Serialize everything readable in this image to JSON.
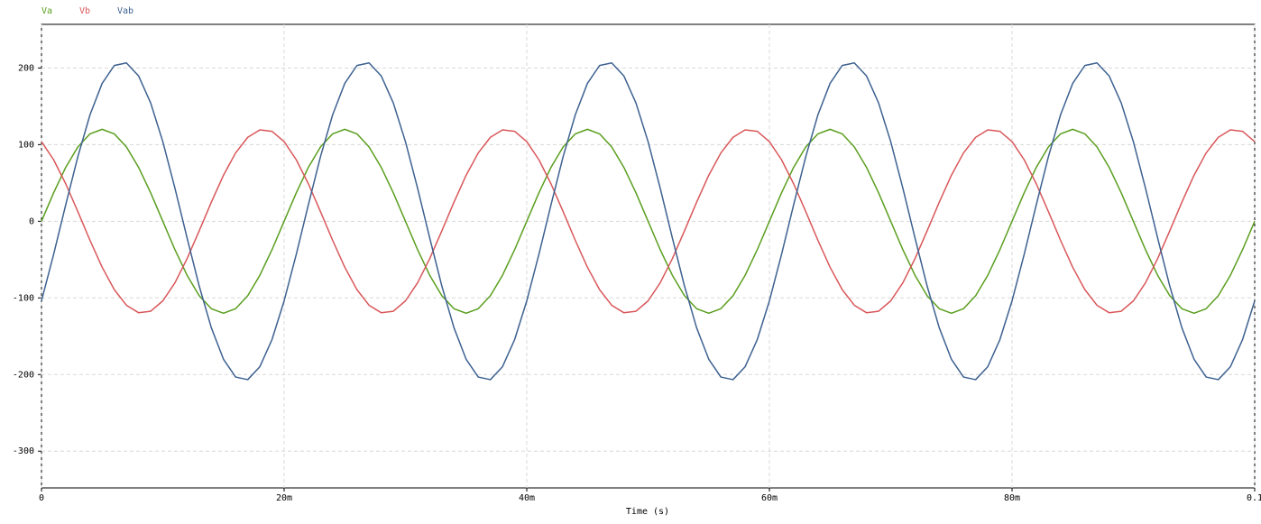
{
  "chart_data": {
    "type": "line",
    "xlabel": "Time (s)",
    "x": [
      0,
      0.001,
      0.002,
      0.003,
      0.004,
      0.005,
      0.006,
      0.007,
      0.008,
      0.009,
      0.01,
      0.011,
      0.012,
      0.013,
      0.014,
      0.015,
      0.016,
      0.017,
      0.018,
      0.019,
      0.02,
      0.021,
      0.022,
      0.023,
      0.024,
      0.025,
      0.026,
      0.027,
      0.028,
      0.029,
      0.03,
      0.031,
      0.032,
      0.033,
      0.034,
      0.035,
      0.036,
      0.037,
      0.038,
      0.039,
      0.04,
      0.041,
      0.042,
      0.043,
      0.044,
      0.045,
      0.046,
      0.047,
      0.048,
      0.049,
      0.05,
      0.051,
      0.052,
      0.053,
      0.054,
      0.055,
      0.056,
      0.057,
      0.058,
      0.059,
      0.06,
      0.061,
      0.062,
      0.063,
      0.064,
      0.065,
      0.066,
      0.067,
      0.068,
      0.069,
      0.07,
      0.071,
      0.072,
      0.073,
      0.074,
      0.075,
      0.076,
      0.077,
      0.078,
      0.079,
      0.08,
      0.081,
      0.082,
      0.083,
      0.084,
      0.085,
      0.086,
      0.087,
      0.088,
      0.089,
      0.09,
      0.091,
      0.092,
      0.093,
      0.094,
      0.095,
      0.096,
      0.097,
      0.098,
      0.099,
      0.1
    ],
    "series": [
      {
        "name": "Va",
        "color": "#5a9e1e",
        "values": [
          0,
          37.1,
          70.5,
          97.1,
          114.1,
          120,
          114.1,
          97.1,
          70.5,
          37.1,
          0,
          -37.1,
          -70.5,
          -97.1,
          -114.1,
          -120,
          -114.1,
          -97.1,
          -70.5,
          -37.1,
          0,
          37.1,
          70.5,
          97.1,
          114.1,
          120,
          114.1,
          97.1,
          70.5,
          37.1,
          0,
          -37.1,
          -70.5,
          -97.1,
          -114.1,
          -120,
          -114.1,
          -97.1,
          -70.5,
          -37.1,
          0,
          37.1,
          70.5,
          97.1,
          114.1,
          120,
          114.1,
          97.1,
          70.5,
          37.1,
          0,
          -37.1,
          -70.5,
          -97.1,
          -114.1,
          -120,
          -114.1,
          -97.1,
          -70.5,
          -37.1,
          0,
          37.1,
          70.5,
          97.1,
          114.1,
          120,
          114.1,
          97.1,
          70.5,
          37.1,
          0,
          -37.1,
          -70.5,
          -97.1,
          -114.1,
          -120,
          -114.1,
          -97.1,
          -70.5,
          -37.1,
          0,
          37.1,
          70.5,
          97.1,
          114.1,
          120,
          114.1,
          97.1,
          70.5,
          37.1,
          0,
          -37.1,
          -70.5,
          -97.1,
          -114.1,
          -120,
          -114.1,
          -97.1,
          -70.5,
          -37.1,
          0
        ]
      },
      {
        "name": "Vb",
        "color": "#d9575a",
        "values": [
          103.9,
          80.3,
          48.8,
          12.5,
          -24.9,
          -60,
          -89.2,
          -109.6,
          -119.3,
          -117.4,
          -103.9,
          -80.3,
          -48.8,
          -12.5,
          24.9,
          60,
          89.2,
          109.6,
          119.3,
          117.4,
          103.9,
          80.3,
          48.8,
          12.5,
          -24.9,
          -60,
          -89.2,
          -109.6,
          -119.3,
          -117.4,
          -103.9,
          -80.3,
          -48.8,
          -12.5,
          24.9,
          60,
          89.2,
          109.6,
          119.3,
          117.4,
          103.9,
          80.3,
          48.8,
          12.5,
          -24.9,
          -60,
          -89.2,
          -109.6,
          -119.3,
          -117.4,
          -103.9,
          -80.3,
          -48.8,
          -12.5,
          24.9,
          60,
          89.2,
          109.6,
          119.3,
          117.4,
          103.9,
          80.3,
          48.8,
          12.5,
          -24.9,
          -60,
          -89.2,
          -109.6,
          -119.3,
          -117.4,
          -103.9,
          -80.3,
          -48.8,
          -12.5,
          24.9,
          60,
          89.2,
          109.6,
          119.3,
          117.4,
          103.9,
          80.3,
          48.8,
          12.5,
          -24.9,
          -60,
          -89.2,
          -109.6,
          -119.3,
          -117.4,
          -103.9,
          -80.3,
          -48.8,
          -12.5,
          24.9,
          60,
          89.2,
          109.6,
          119.3,
          117.4,
          103.9
        ]
      },
      {
        "name": "Vab",
        "color": "#3d6190",
        "values": [
          -103.9,
          -43.2,
          21.7,
          84.5,
          139.0,
          180.0,
          203.3,
          206.7,
          189.8,
          154.4,
          103.9,
          43.2,
          -21.7,
          -84.5,
          -139.0,
          -180.0,
          -203.3,
          -206.7,
          -189.8,
          -154.4,
          -103.9,
          -43.2,
          21.7,
          84.5,
          139.0,
          180.0,
          203.3,
          206.7,
          189.8,
          154.4,
          103.9,
          43.2,
          -21.7,
          -84.5,
          -139.0,
          -180.0,
          -203.3,
          -206.7,
          -189.8,
          -154.4,
          -103.9,
          -43.2,
          21.7,
          84.5,
          139.0,
          180.0,
          203.3,
          206.7,
          189.8,
          154.4,
          103.9,
          43.2,
          -21.7,
          -84.5,
          -139.0,
          -180.0,
          -203.3,
          -206.7,
          -189.8,
          -154.4,
          -103.9,
          -43.2,
          21.7,
          84.5,
          139.0,
          180.0,
          203.3,
          206.7,
          189.8,
          154.4,
          103.9,
          43.2,
          -21.7,
          -84.5,
          -139.0,
          -180.0,
          -203.3,
          -206.7,
          -189.8,
          -154.4,
          -103.9,
          -43.2,
          21.7,
          84.5,
          139.0,
          180.0,
          203.3,
          206.7,
          189.8,
          154.4,
          103.9,
          43.2,
          -21.7,
          -84.5,
          -139.0,
          -180.0,
          -203.3,
          -206.7,
          -189.8,
          -154.4,
          -103.9
        ]
      }
    ],
    "xlim": [
      0,
      0.1
    ],
    "xticks": [
      0,
      {
        "value": 0.02,
        "label": "20m"
      },
      {
        "value": 0.04,
        "label": "40m"
      },
      {
        "value": 0.06,
        "label": "60m"
      },
      {
        "value": 0.08,
        "label": "80m"
      },
      0.1
    ],
    "ylim": [
      -348,
      257
    ],
    "yticks": [
      -300,
      -200,
      -100,
      0,
      100,
      200
    ],
    "grid": true,
    "legend": "top-left"
  }
}
